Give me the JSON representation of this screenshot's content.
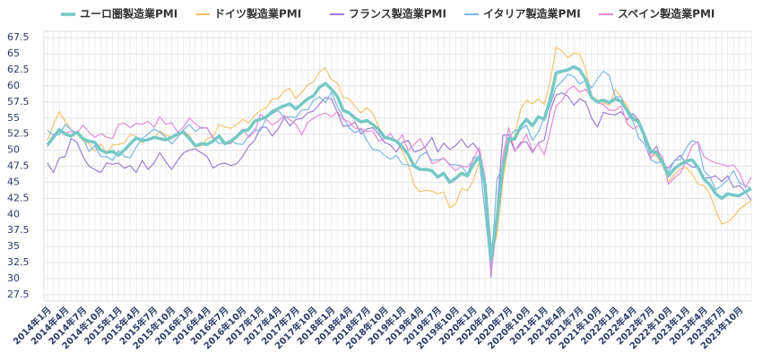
{
  "chart_data": {
    "type": "line",
    "categories": [
      "2014年1月",
      null,
      null,
      "2014年4月",
      null,
      null,
      "2014年7月",
      null,
      null,
      "2014年10月",
      null,
      null,
      "2015年1月",
      null,
      null,
      "2015年4月",
      null,
      null,
      "2015年7月",
      null,
      null,
      "2015年10月",
      null,
      null,
      "2016年1月",
      null,
      null,
      "2016年4月",
      null,
      null,
      "2016年7月",
      null,
      null,
      "2016年10月",
      null,
      null,
      "2017年1月",
      null,
      null,
      "2017年4月",
      null,
      null,
      "2017年7月",
      null,
      null,
      "2017年10月",
      null,
      null,
      "2018年1月",
      null,
      null,
      "2018年4月",
      null,
      null,
      "2018年7月",
      null,
      null,
      "2018年10月",
      null,
      null,
      "2019年1月",
      null,
      null,
      "2019年4月",
      null,
      null,
      "2019年7月",
      null,
      null,
      "2019年10月",
      null,
      null,
      "2020年1月",
      null,
      null,
      "2020年4月",
      null,
      null,
      "2020年7月",
      null,
      null,
      "2020年10月",
      null,
      null,
      "2021年1月",
      null,
      null,
      "2021年4月",
      null,
      null,
      "2021年7月",
      null,
      null,
      "2021年10月",
      null,
      null,
      "2022年1月",
      null,
      null,
      "2022年4月",
      null,
      null,
      "2022年7月",
      null,
      null,
      "2022年10月",
      null,
      null,
      "2023年1月",
      null,
      null,
      "2023年4月",
      null,
      null,
      "2023年7月",
      null,
      null,
      "2023年10月",
      null,
      null
    ],
    "series": [
      {
        "name": "ユーロ圏製造業PMI",
        "color": "#76c9c5",
        "width": 3.5,
        "values": [
          50.8,
          52.0,
          53.2,
          52.5,
          52.2,
          52.8,
          51.8,
          51.4,
          51.2,
          50.0,
          49.6,
          49.8,
          49.2,
          50.0,
          51.0,
          51.9,
          51.5,
          51.6,
          52.0,
          51.8,
          51.6,
          52.0,
          52.5,
          52.8,
          51.8,
          50.7,
          51.0,
          50.9,
          51.4,
          52.2,
          51.0,
          51.4,
          52.1,
          53.0,
          53.2,
          54.5,
          54.8,
          55.2,
          56.0,
          56.5,
          56.9,
          57.2,
          56.4,
          57.2,
          58.0,
          58.5,
          59.8,
          60.4,
          59.5,
          58.4,
          56.2,
          55.8,
          55.0,
          54.4,
          54.6,
          54.0,
          53.2,
          52.0,
          51.8,
          51.4,
          50.5,
          49.3,
          47.5,
          47.0,
          47.0,
          46.8,
          45.8,
          46.4,
          45.0,
          45.6,
          46.4,
          46.0,
          47.8,
          49.0,
          44.5,
          33.0,
          39.4,
          47.4,
          51.8,
          51.7,
          53.7,
          54.8,
          53.8,
          55.2,
          54.8,
          57.9,
          62.0,
          62.3,
          62.5,
          63.0,
          62.5,
          61.0,
          58.2,
          57.5,
          57.8,
          57.4,
          58.0,
          57.6,
          56.2,
          55.0,
          54.3,
          52.1,
          49.8,
          49.6,
          48.2,
          46.0,
          47.1,
          47.8,
          48.3,
          48.5,
          47.3,
          45.5,
          44.6,
          43.2,
          42.5,
          43.2,
          43.0,
          42.9,
          43.5,
          44.0
        ]
      },
      {
        "name": "ドイツ製造業PMI",
        "color": "#f5c26b",
        "width": 1.2,
        "values": [
          51.5,
          54.0,
          56.0,
          54.5,
          53.2,
          52.5,
          51.5,
          51.0,
          49.8,
          51.0,
          49.5,
          50.8,
          50.9,
          51.1,
          52.5,
          52.1,
          51.1,
          51.9,
          51.8,
          53.0,
          52.3,
          52.1,
          52.6,
          53.0,
          52.3,
          50.5,
          50.7,
          51.8,
          52.1,
          54.0,
          53.6,
          53.4,
          54.0,
          54.8,
          54.2,
          55.4,
          56.2,
          56.6,
          58.0,
          58.0,
          59.2,
          59.6,
          58.0,
          59.0,
          60.2,
          60.6,
          62.2,
          62.8,
          61.0,
          60.5,
          58.2,
          58.0,
          56.8,
          55.8,
          56.6,
          55.8,
          53.6,
          52.2,
          51.8,
          51.5,
          49.8,
          47.8,
          44.5,
          43.5,
          43.8,
          43.6,
          43.2,
          43.5,
          41.0,
          41.6,
          44.0,
          43.7,
          45.3,
          48.0,
          45.4,
          34.5,
          36.6,
          45.2,
          51.0,
          52.2,
          56.4,
          57.8,
          57.2,
          58.0,
          57.1,
          60.7,
          66.0,
          65.5,
          64.4,
          65.1,
          65.0,
          62.6,
          58.4,
          57.8,
          57.4,
          57.0,
          59.5,
          58.2,
          56.9,
          54.6,
          54.8,
          52.0,
          49.3,
          49.1,
          47.8,
          45.1,
          46.2,
          47.1,
          47.3,
          46.3,
          44.7,
          44.5,
          43.2,
          40.6,
          38.5,
          38.8,
          39.6,
          40.8,
          41.5,
          42.2
        ]
      },
      {
        "name": "フランス製造業PMI",
        "color": "#9b7fd6",
        "width": 1.2,
        "values": [
          48.0,
          46.5,
          48.8,
          49.0,
          51.8,
          51.2,
          49.0,
          47.5,
          47.0,
          46.5,
          48.0,
          47.8,
          48.0,
          47.2,
          47.6,
          46.5,
          48.4,
          47.0,
          48.0,
          49.6,
          48.2,
          47.0,
          48.4,
          49.6,
          50.0,
          50.2,
          49.6,
          49.0,
          47.2,
          47.8,
          48.0,
          47.6,
          47.9,
          49.0,
          50.6,
          51.5,
          53.5,
          53.6,
          52.2,
          53.3,
          55.1,
          53.8,
          54.8,
          54.9,
          55.8,
          56.1,
          57.2,
          58.2,
          58.0,
          55.9,
          53.7,
          53.8,
          54.4,
          52.5,
          53.3,
          53.5,
          52.5,
          51.2,
          50.8,
          49.7,
          51.2,
          51.5,
          49.7,
          50.0,
          50.6,
          52.0,
          49.7,
          51.1,
          50.1,
          50.7,
          51.7,
          50.4,
          51.1,
          49.8,
          43.2,
          30.2,
          40.6,
          52.3,
          52.4,
          49.8,
          51.2,
          51.3,
          49.6,
          51.1,
          51.6,
          56.1,
          58.6,
          58.9,
          58.4,
          57.0,
          58.0,
          57.5,
          55.0,
          53.6,
          55.9,
          55.6,
          55.5,
          56.0,
          54.7,
          55.7,
          54.6,
          51.4,
          49.5,
          50.6,
          47.7,
          47.2,
          48.3,
          49.2,
          48.0,
          47.4,
          47.3,
          45.6,
          45.7,
          46.0,
          45.1,
          46.0,
          44.2,
          44.5,
          43.5,
          42.2
        ]
      },
      {
        "name": "イタリア製造業PMI",
        "color": "#7ab6e8",
        "width": 1.2,
        "values": [
          53.1,
          52.3,
          52.4,
          54.0,
          53.2,
          52.6,
          51.9,
          49.8,
          50.7,
          49.0,
          49.0,
          48.4,
          49.9,
          49.0,
          48.8,
          50.5,
          51.8,
          52.5,
          53.3,
          52.8,
          52.0,
          51.0,
          52.0,
          53.2,
          54.0,
          52.9,
          53.6,
          53.4,
          52.0,
          51.0,
          51.2,
          51.5,
          51.0,
          50.9,
          52.2,
          53.2,
          53.0,
          55.0,
          55.7,
          56.2,
          55.1,
          55.2,
          55.1,
          56.3,
          56.3,
          57.8,
          58.3,
          57.4,
          59.0,
          56.8,
          55.1,
          53.5,
          52.7,
          53.3,
          51.5,
          50.1,
          50.0,
          49.2,
          48.6,
          49.2,
          47.8,
          47.7,
          47.4,
          49.1,
          49.7,
          48.4,
          48.5,
          48.7,
          47.8,
          47.7,
          47.6,
          46.2,
          48.9,
          48.7,
          40.3,
          31.1,
          45.4,
          47.5,
          51.9,
          53.1,
          53.2,
          53.9,
          51.5,
          52.8,
          55.1,
          56.9,
          59.8,
          60.7,
          61.8,
          61.5,
          60.3,
          60.9,
          59.7,
          61.1,
          62.3,
          61.6,
          58.3,
          58.3,
          55.8,
          54.5,
          51.9,
          50.9,
          48.5,
          48.0,
          48.3,
          46.5,
          48.4,
          48.5,
          50.4,
          51.5,
          51.1,
          46.8,
          45.9,
          43.8,
          44.5,
          45.4,
          46.8,
          44.9,
          44.4,
          44.0
        ]
      },
      {
        "name": "スペイン製造業PMI",
        "color": "#e78ad6",
        "width": 1.2,
        "values": [
          50.5,
          52.5,
          52.8,
          52.7,
          52.9,
          52.6,
          53.9,
          52.8,
          52.0,
          52.6,
          52.0,
          51.8,
          54.0,
          54.2,
          53.5,
          54.2,
          54.0,
          54.5,
          53.6,
          55.2,
          54.0,
          54.3,
          52.8,
          53.6,
          55.0,
          54.1,
          53.4,
          53.5,
          51.8,
          52.2,
          51.0,
          51.0,
          52.3,
          53.3,
          52.0,
          52.8,
          55.6,
          54.8,
          53.9,
          54.5,
          55.4,
          54.7,
          54.0,
          52.4,
          54.3,
          55.0,
          55.5,
          55.8,
          55.2,
          56.0,
          54.8,
          54.4,
          53.4,
          53.4,
          52.9,
          53.0,
          51.4,
          51.8,
          52.6,
          51.1,
          52.4,
          49.9,
          50.9,
          51.8,
          50.1,
          47.9,
          48.2,
          48.8,
          47.7,
          46.8,
          47.5,
          47.4,
          48.5,
          50.4,
          45.7,
          30.8,
          38.3,
          49.0,
          53.5,
          49.9,
          50.8,
          52.5,
          49.8,
          51.0,
          49.3,
          52.9,
          56.9,
          57.7,
          59.4,
          60.0,
          59.0,
          59.5,
          58.1,
          57.4,
          57.1,
          56.2,
          56.2,
          56.9,
          54.2,
          53.3,
          53.8,
          52.6,
          48.7,
          49.9,
          49.0,
          44.7,
          45.7,
          46.4,
          48.4,
          50.7,
          51.3,
          49.0,
          48.4,
          48.0,
          47.8,
          47.5,
          47.7,
          46.5,
          44.2,
          45.8
        ]
      }
    ],
    "ylim": [
      26.5,
      68.5
    ],
    "yticks": [
      27.5,
      30,
      32.5,
      35,
      37.5,
      40,
      42.5,
      45,
      47.5,
      50,
      52.5,
      55,
      57.5,
      60,
      62.5,
      65,
      67.5
    ],
    "grid": true
  }
}
